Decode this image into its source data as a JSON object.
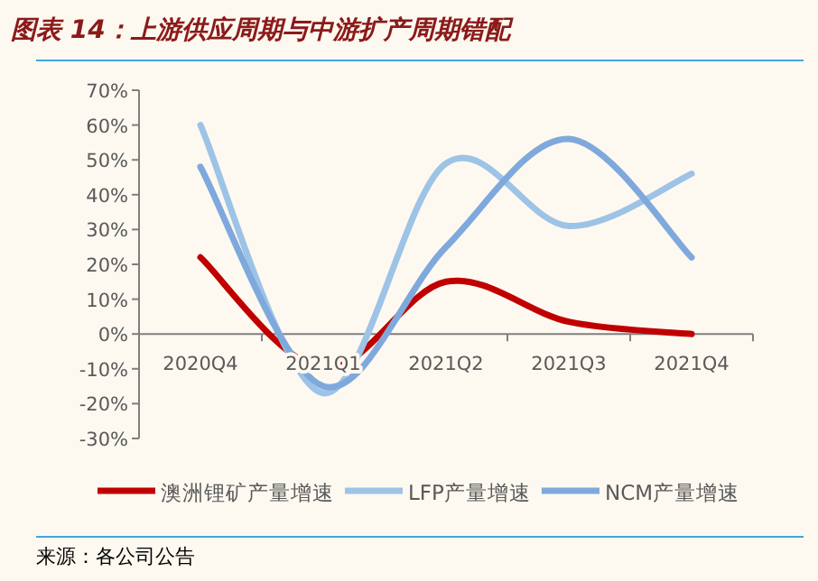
{
  "chart_data": {
    "type": "line",
    "title": "图表 14：上游供应周期与中游扩产周期错配",
    "categories": [
      "2020Q4",
      "2021Q1",
      "2021Q2",
      "2021Q3",
      "2021Q4"
    ],
    "series": [
      {
        "name": "澳洲锂矿产量增速",
        "color": "#c00000",
        "values": [
          22,
          -10,
          15,
          3.5,
          0
        ]
      },
      {
        "name": "LFP产量增速",
        "color": "#9dc3e6",
        "values": [
          60,
          -17,
          49,
          31,
          46
        ]
      },
      {
        "name": "NCM产量增速",
        "color": "#7fa9dc",
        "values": [
          48,
          -15,
          25,
          56,
          22
        ]
      }
    ],
    "ylim": [
      -30,
      70
    ],
    "yticks": [
      {
        "value": -30,
        "label": "-30%"
      },
      {
        "value": -20,
        "label": "-20%"
      },
      {
        "value": -10,
        "label": "-10%"
      },
      {
        "value": 0,
        "label": "0%"
      },
      {
        "value": 10,
        "label": "10%"
      },
      {
        "value": 20,
        "label": "20%"
      },
      {
        "value": 30,
        "label": "30%"
      },
      {
        "value": 40,
        "label": "40%"
      },
      {
        "value": 50,
        "label": "50%"
      },
      {
        "value": 60,
        "label": "60%"
      },
      {
        "value": 70,
        "label": "70%"
      }
    ],
    "legend": "bottom",
    "grid": false,
    "marker": "none",
    "line_style": "solid",
    "annotations": [
      "来源：各公司公告"
    ]
  }
}
